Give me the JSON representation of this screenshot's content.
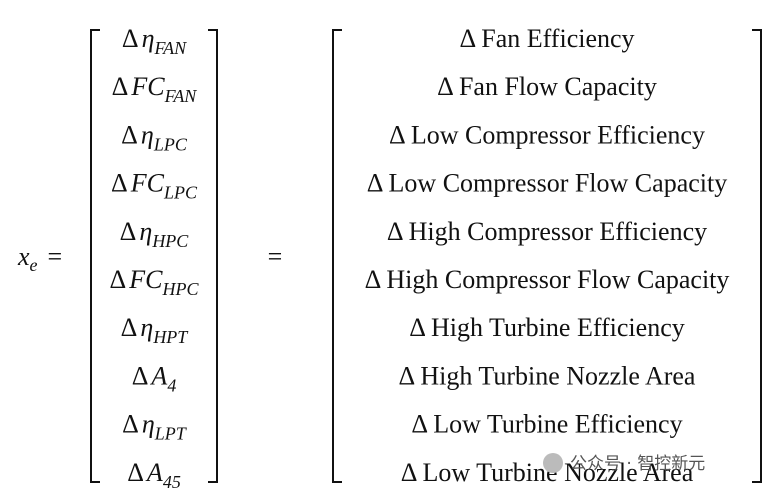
{
  "equation": {
    "lhs": {
      "symbol": "x",
      "sub": "e",
      "equals": "="
    },
    "middle_equals": "=",
    "left_vector": [
      {
        "delta": "Δ",
        "symbol": "η",
        "sub": "FAN"
      },
      {
        "delta": "Δ",
        "symbol": "FC",
        "sub": "FAN"
      },
      {
        "delta": "Δ",
        "symbol": "η",
        "sub": "LPC"
      },
      {
        "delta": "Δ",
        "symbol": "FC",
        "sub": "LPC"
      },
      {
        "delta": "Δ",
        "symbol": "η",
        "sub": "HPC"
      },
      {
        "delta": "Δ",
        "symbol": "FC",
        "sub": "HPC"
      },
      {
        "delta": "Δ",
        "symbol": "η",
        "sub": "HPT"
      },
      {
        "delta": "Δ",
        "symbol": "A",
        "sub": "4"
      },
      {
        "delta": "Δ",
        "symbol": "η",
        "sub": "LPT"
      },
      {
        "delta": "Δ",
        "symbol": "A",
        "sub": "45"
      }
    ],
    "right_vector": [
      "Δ Fan Efficiency",
      "Δ Fan Flow Capacity",
      "Δ Low Compressor Efficiency",
      "Δ Low Compressor Flow Capacity",
      "Δ High Compressor Efficiency",
      "Δ High Compressor Flow Capacity",
      "Δ High Turbine Efficiency",
      "Δ High Turbine Nozzle Area",
      "Δ Low Turbine Efficiency",
      "Δ Low Turbine Nozzle Area"
    ]
  },
  "watermark": {
    "text": "公众号 · 智控新元"
  }
}
